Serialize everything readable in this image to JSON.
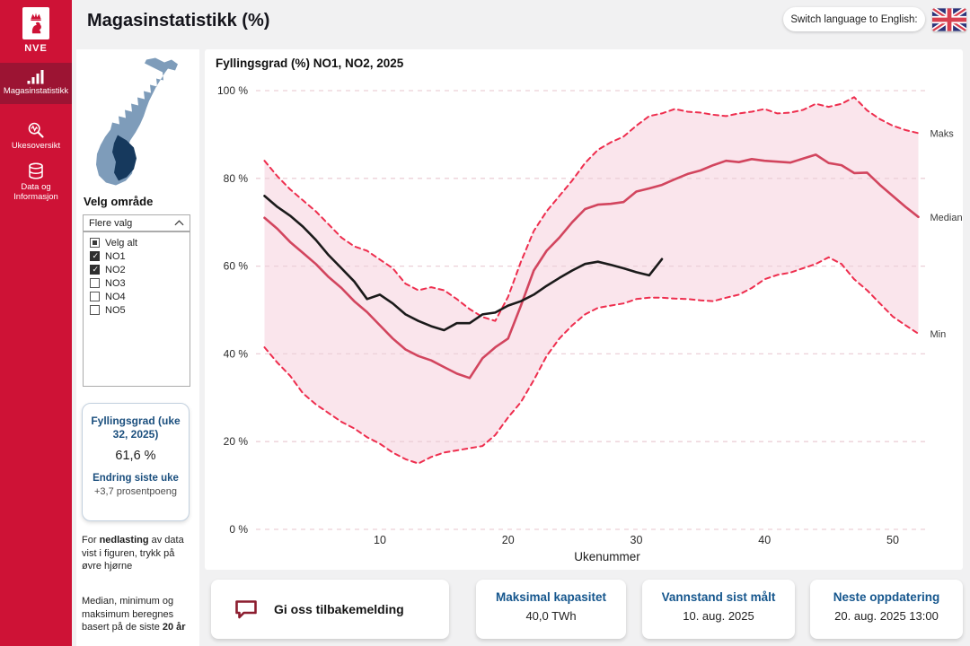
{
  "header": {
    "title": "Magasinstatistikk (%)",
    "language_button": "Switch language to English:"
  },
  "sidebar": {
    "logo_text": "NVE",
    "items": [
      {
        "label": "Magasinstatistikk",
        "icon": "bar-chart-icon",
        "active": true
      },
      {
        "label": "Ukesoversikt",
        "icon": "magnifier-pulse-icon",
        "active": false
      },
      {
        "label": "Data og Informasjon",
        "icon": "database-icon",
        "active": false
      }
    ]
  },
  "filter_panel": {
    "section_title": "Velg område",
    "dropdown_label": "Flere valg",
    "options": [
      {
        "label": "Velg alt",
        "state": "indeterminate"
      },
      {
        "label": "NO1",
        "state": "checked"
      },
      {
        "label": "NO2",
        "state": "checked"
      },
      {
        "label": "NO3",
        "state": "unchecked"
      },
      {
        "label": "NO4",
        "state": "unchecked"
      },
      {
        "label": "NO5",
        "state": "unchecked"
      }
    ]
  },
  "summary_card": {
    "title": "Fyllingsgrad (uke 32, 2025)",
    "value": "61,6 %",
    "change_label": "Endring siste uke",
    "change_value": "+3,7 prosentpoeng"
  },
  "notes": {
    "n1_pre": "For ",
    "n1_bold": "nedlasting",
    "n1_post": " av data vist i figuren, trykk på øvre hjørne",
    "n2_pre": "Median, minimum og maksimum beregnes basert på de siste ",
    "n2_bold": "20 år"
  },
  "colors": {
    "sidebar_red": "#ce1236",
    "sidebar_active_red": "#9c1433",
    "band_pink": "#fae5ec",
    "dashed_red": "#ee2e4e",
    "median_red": "#d2455e",
    "current_year_black": "#1a1a1a",
    "gridline_pink": "#ecd0d8",
    "accent_blue": "#15568d"
  },
  "chart_data": {
    "type": "line",
    "title": "Fyllingsgrad (%) NO1, NO2, 2025",
    "xlabel": "Ukenummer",
    "xlim": [
      1,
      52
    ],
    "ylim": [
      0,
      100
    ],
    "x_ticks": [
      10,
      20,
      30,
      40,
      50
    ],
    "y_ticks": [
      {
        "v": 0,
        "label": "0 %"
      },
      {
        "v": 20,
        "label": "20 %"
      },
      {
        "v": 40,
        "label": "40 %"
      },
      {
        "v": 60,
        "label": "60 %"
      },
      {
        "v": 80,
        "label": "80 %"
      },
      {
        "v": 100,
        "label": "100 %"
      }
    ],
    "grid": true,
    "band_between": [
      "Maks",
      "Min"
    ],
    "right_labels": [
      "Maks",
      "Median",
      "Min"
    ],
    "series": [
      {
        "name": "Maks",
        "style": "dashed",
        "color": "#ee2e4e",
        "width": 2,
        "values": [
          84,
          80.5,
          77.5,
          75,
          72.5,
          69.5,
          66.5,
          64.5,
          63.5,
          61.5,
          59.5,
          56,
          54.5,
          55.2,
          54.5,
          52.5,
          50.2,
          48.4,
          47.5,
          53,
          61,
          68,
          72.5,
          76,
          79.5,
          83.5,
          86.5,
          88.2,
          89.5,
          92,
          94.2,
          94.8,
          95.8,
          95.2,
          95,
          94.5,
          94.2,
          94.8,
          95.2,
          95.8,
          94.8,
          95,
          95.6,
          97,
          96.3,
          97,
          98.5,
          95.5,
          93.5,
          92,
          91,
          90.3
        ]
      },
      {
        "name": "Median",
        "style": "solid",
        "color": "#d2455e",
        "width": 2.6,
        "values": [
          71,
          68.5,
          65.5,
          63,
          60.5,
          57.5,
          55,
          52,
          49.5,
          46.5,
          43.5,
          41,
          39.5,
          38.5,
          37,
          35.5,
          34.5,
          39,
          41.5,
          43.5,
          51,
          59,
          63.5,
          66.5,
          70,
          73,
          74,
          74.2,
          74.6,
          77,
          77.7,
          78.5,
          79.8,
          81,
          81.8,
          83,
          84,
          83.7,
          84.4,
          84,
          83.8,
          83.6,
          84.5,
          85.4,
          83.5,
          83,
          81.2,
          81.3,
          78.5,
          76,
          73.5,
          71.2
        ]
      },
      {
        "name": "Min",
        "style": "dashed",
        "color": "#ee2e4e",
        "width": 2,
        "values": [
          41.5,
          38,
          35,
          31,
          28.5,
          26.5,
          24.5,
          23,
          21,
          19.5,
          17.5,
          16,
          15,
          16.5,
          17.5,
          18,
          18.5,
          19,
          21.5,
          25.5,
          29,
          34,
          39.5,
          43.5,
          46.5,
          49,
          50.5,
          51,
          51.5,
          52.5,
          52.8,
          52.8,
          52.6,
          52.5,
          52.2,
          52,
          52.8,
          53.5,
          55,
          57,
          58,
          58.5,
          59.5,
          60.5,
          62,
          60.5,
          57,
          54.5,
          51.5,
          48.5,
          46.5,
          44.6
        ]
      },
      {
        "name": "Fyllingsgrad 2025",
        "style": "solid",
        "color": "#1a1a1a",
        "width": 2.6,
        "values": [
          76,
          73.5,
          71.5,
          69,
          66,
          62.5,
          59.5,
          56.5,
          52.5,
          53.5,
          51.5,
          49,
          47.5,
          46.3,
          45.4,
          47,
          47,
          49,
          49.4,
          51,
          52,
          53.5,
          55.5,
          57.3,
          59,
          60.5,
          61,
          60.3,
          59.5,
          58.6,
          57.9,
          61.6
        ]
      }
    ]
  },
  "footer": {
    "feedback_label": "Gi oss tilbakemelding",
    "cards": [
      {
        "title": "Maksimal kapasitet",
        "value": "40,0 TWh"
      },
      {
        "title": "Vannstand sist målt",
        "value": "10. aug. 2025"
      },
      {
        "title": "Neste oppdatering",
        "value": "20. aug. 2025 13:00"
      }
    ]
  }
}
